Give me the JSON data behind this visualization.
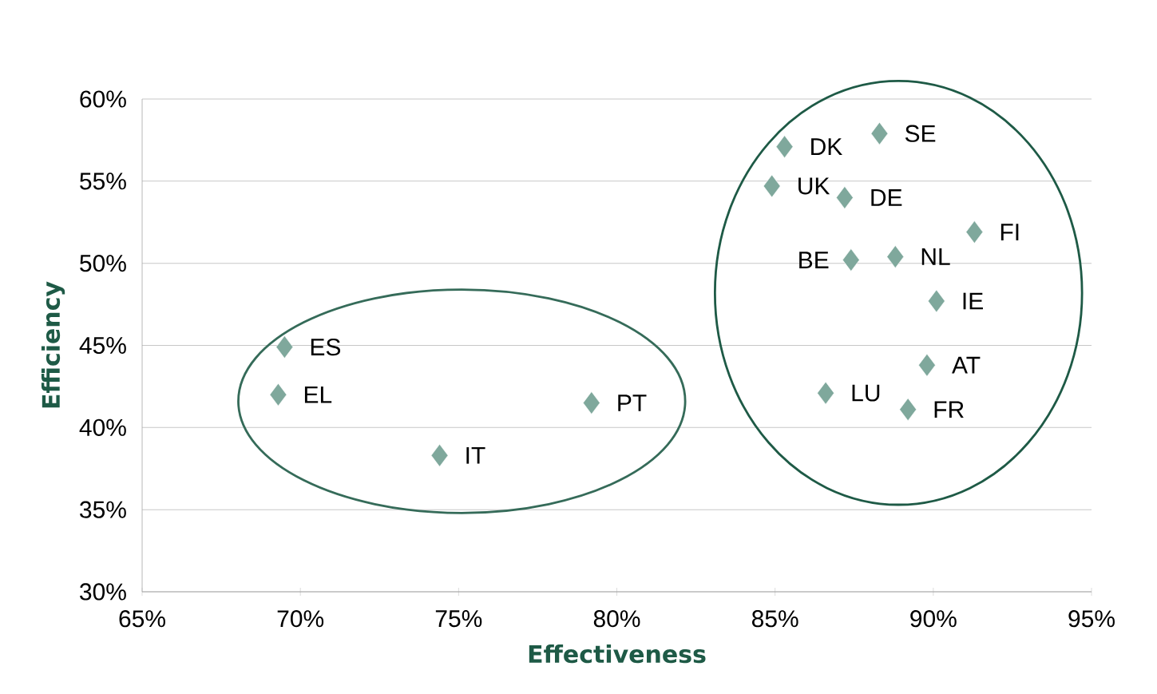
{
  "chart_data": {
    "type": "scatter",
    "xlabel": "Effectiveness",
    "ylabel": "Efficiency",
    "x": [
      69.5,
      69.3,
      74.4,
      79.2,
      85.3,
      88.3,
      84.9,
      87.2,
      91.3,
      87.4,
      88.8,
      90.1,
      89.8,
      86.6,
      89.2
    ],
    "series": [
      {
        "color": "#7fa89c",
        "values": [
          44.9,
          42.0,
          38.3,
          41.5,
          57.1,
          57.9,
          54.7,
          54.0,
          51.9,
          50.2,
          50.4,
          47.7,
          43.8,
          42.1,
          41.1
        ]
      }
    ],
    "marker": "diamond",
    "grid": "y",
    "xlim": [
      65,
      95
    ],
    "ylim": [
      30,
      60
    ],
    "xticks": [
      {
        "value": 65,
        "label": "65%"
      },
      {
        "value": 70,
        "label": "70%"
      },
      {
        "value": 75,
        "label": "75%"
      },
      {
        "value": 80,
        "label": "80%"
      },
      {
        "value": 85,
        "label": "85%"
      },
      {
        "value": 90,
        "label": "90%"
      },
      {
        "value": 95,
        "label": "95%"
      }
    ],
    "yticks": [
      {
        "value": 30,
        "label": "30%"
      },
      {
        "value": 35,
        "label": "35%"
      },
      {
        "value": 40,
        "label": "40%"
      },
      {
        "value": 45,
        "label": "45%"
      },
      {
        "value": 50,
        "label": "50%"
      },
      {
        "value": 55,
        "label": "55%"
      },
      {
        "value": 60,
        "label": "60%"
      }
    ],
    "annotations": [
      {
        "text": "ES",
        "x": 69.5,
        "y": 44.9
      },
      {
        "text": "EL",
        "x": 69.3,
        "y": 42.0
      },
      {
        "text": "IT",
        "x": 74.4,
        "y": 38.3
      },
      {
        "text": "PT",
        "x": 79.2,
        "y": 41.5
      },
      {
        "text": "DK",
        "x": 85.3,
        "y": 57.1
      },
      {
        "text": "SE",
        "x": 88.3,
        "y": 57.9
      },
      {
        "text": "UK",
        "x": 84.9,
        "y": 54.7
      },
      {
        "text": "DE",
        "x": 87.2,
        "y": 54.0
      },
      {
        "text": "FI",
        "x": 91.3,
        "y": 51.9
      },
      {
        "text": "BE",
        "x": 87.4,
        "y": 50.2
      },
      {
        "text": "NL",
        "x": 88.8,
        "y": 50.4
      },
      {
        "text": "IE",
        "x": 90.1,
        "y": 47.7
      },
      {
        "text": "AT",
        "x": 89.8,
        "y": 43.8
      },
      {
        "text": "LU",
        "x": 86.6,
        "y": 42.1
      },
      {
        "text": "FR",
        "x": 89.2,
        "y": 41.1
      }
    ]
  }
}
